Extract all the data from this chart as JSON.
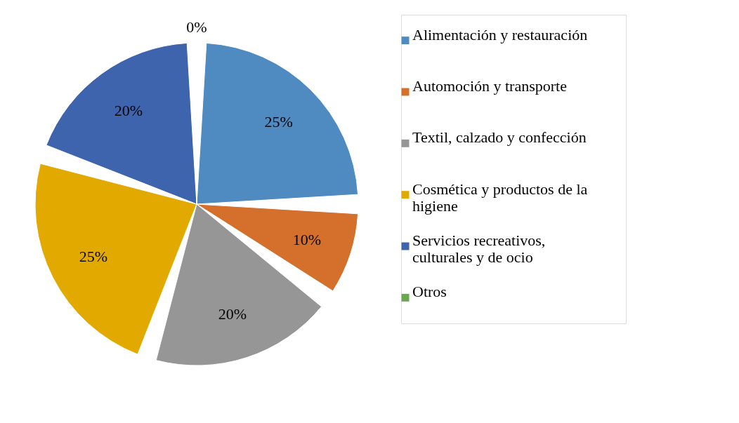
{
  "chart_data": {
    "type": "pie",
    "categories": [
      "Alimentación y restauración",
      "Automoción y transporte",
      "Textil, calzado y confección",
      "Cosmética y productos de la higiene",
      "Servicios recreativos, culturales y de ocio",
      "Otros"
    ],
    "values": [
      25,
      10,
      20,
      25,
      20,
      0
    ],
    "value_labels": [
      "25%",
      "10%",
      "20%",
      "25%",
      "20%",
      "0%"
    ],
    "colors": [
      "#4f8bc0",
      "#d56f2c",
      "#969696",
      "#e2aa00",
      "#3e64ad",
      "#6aa84f"
    ],
    "legend": "right"
  }
}
